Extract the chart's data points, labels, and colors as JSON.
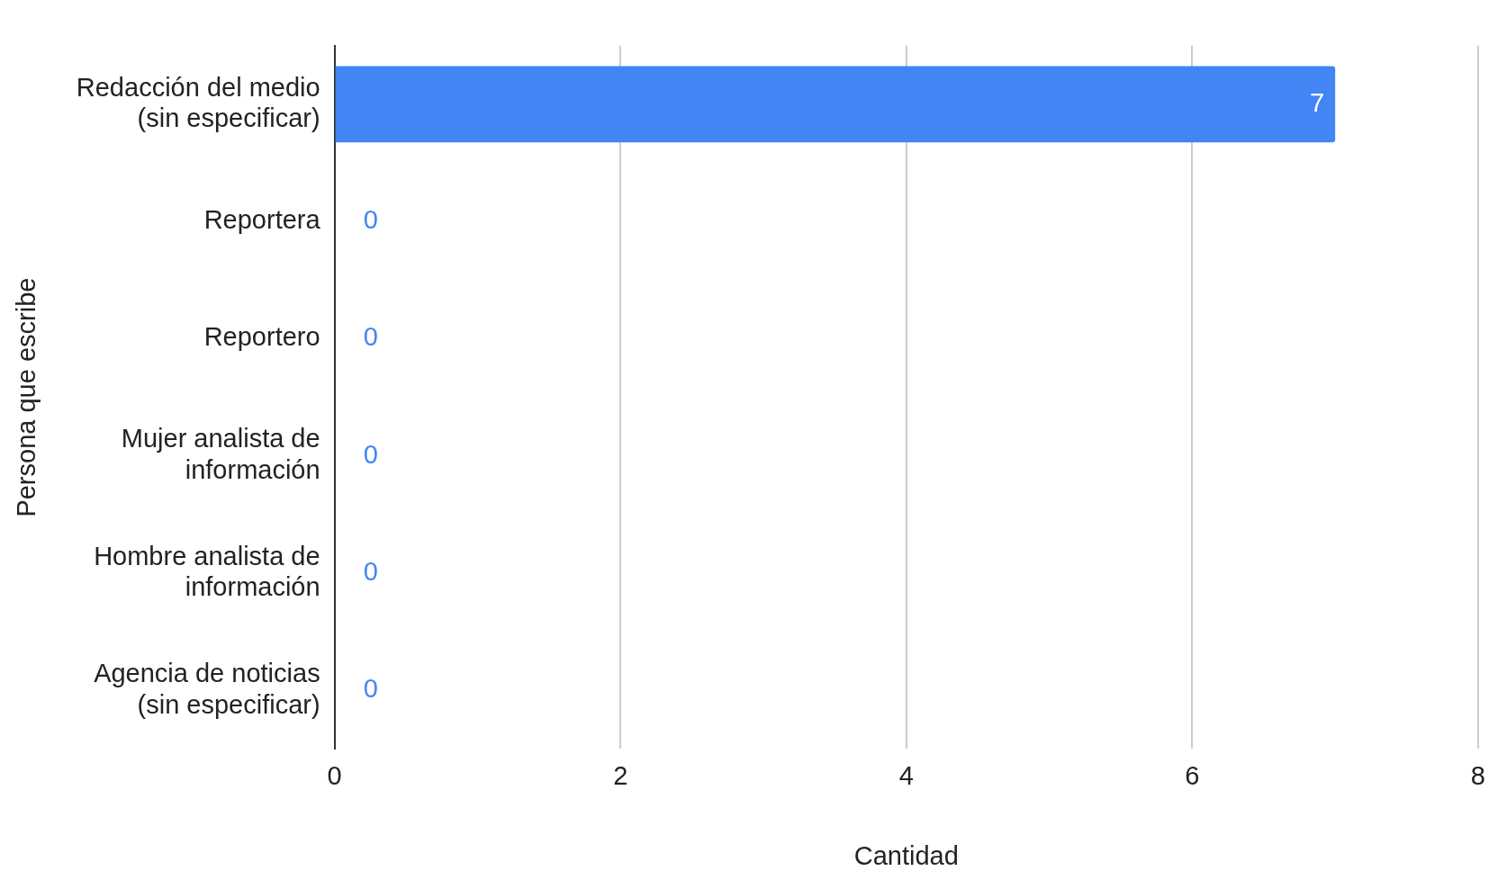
{
  "chart_data": {
    "type": "bar",
    "orientation": "horizontal",
    "xlabel": "Cantidad",
    "ylabel": "Persona que escribe",
    "categories": [
      "Redacción del medio (sin especificar)",
      "Reportera",
      "Reportero",
      "Mujer analista de información",
      "Hombre analista de información",
      "Agencia de noticias (sin especificar)"
    ],
    "values": [
      7,
      0,
      0,
      0,
      0,
      0
    ],
    "color": "#4285f4",
    "xlim": [
      0,
      8
    ],
    "xticks": [
      0,
      2,
      4,
      6,
      8
    ],
    "grid": "x",
    "data_labels": true,
    "legend": false
  }
}
